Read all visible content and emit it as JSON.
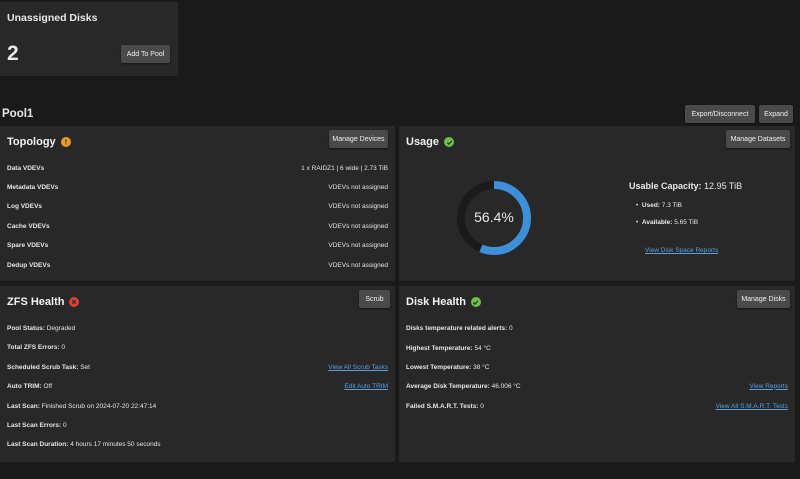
{
  "unassigned": {
    "title": "Unassigned Disks",
    "count": "2",
    "add_button": "Add To Pool"
  },
  "pool": {
    "name": "Pool1",
    "export_button": "Export/Disconnect",
    "expand_button": "Expand"
  },
  "topology": {
    "title": "Topology",
    "manage_button": "Manage Devices",
    "rows": [
      {
        "label": "Data VDEVs",
        "value": "1 x RAIDZ1 | 6 wide | 2.73 TiB"
      },
      {
        "label": "Metadata VDEVs",
        "value": "VDEVs not assigned"
      },
      {
        "label": "Log VDEVs",
        "value": "VDEVs not assigned"
      },
      {
        "label": "Cache VDEVs",
        "value": "VDEVs not assigned"
      },
      {
        "label": "Spare VDEVs",
        "value": "VDEVs not assigned"
      },
      {
        "label": "Dedup VDEVs",
        "value": "VDEVs not assigned"
      }
    ]
  },
  "usage": {
    "title": "Usage",
    "manage_button": "Manage Datasets",
    "percent_text": "56.4%",
    "percent": 0.564,
    "capacity_label": "Usable Capacity:",
    "capacity_value": "12.95 TiB",
    "used_label": "Used:",
    "used_value": "7.3 TiB",
    "available_label": "Available:",
    "available_value": "5.65 TiB",
    "reports_link": "View Disk Space Reports"
  },
  "zfs": {
    "title": "ZFS Health",
    "scrub_button": "Scrub",
    "rows": [
      {
        "label": "Pool Status:",
        "value": "Degraded",
        "link": ""
      },
      {
        "label": "Total ZFS Errors:",
        "value": "0",
        "link": ""
      },
      {
        "label": "Scheduled Scrub Task:",
        "value": "Set",
        "link": "View All Scrub Tasks"
      },
      {
        "label": "Auto TRIM:",
        "value": "Off",
        "link": "Edit Auto TRIM"
      },
      {
        "label": "Last Scan:",
        "value": "Finished Scrub on 2024-07-20 22:47:14",
        "link": ""
      },
      {
        "label": "Last Scan Errors:",
        "value": "0",
        "link": ""
      },
      {
        "label": "Last Scan Duration:",
        "value": "4 hours 17 minutes 50 seconds",
        "link": ""
      }
    ]
  },
  "disk": {
    "title": "Disk Health",
    "manage_button": "Manage Disks",
    "rows": [
      {
        "label": "Disks temperature related alerts:",
        "value": "0",
        "link": ""
      },
      {
        "label": "Highest Temperature:",
        "value": "54 °C",
        "link": ""
      },
      {
        "label": "Lowest Temperature:",
        "value": "38 °C",
        "link": ""
      },
      {
        "label": "Average Disk Temperature:",
        "value": "46.006 °C",
        "link": "View Reports"
      },
      {
        "label": "Failed S.M.A.R.T. Tests:",
        "value": "0",
        "link": "View All S.M.A.R.T. Tests"
      }
    ]
  },
  "colors": {
    "accent": "#3d8fd8",
    "warning": "#e89a2c",
    "ok": "#6cc24a",
    "error": "#d9413a"
  }
}
